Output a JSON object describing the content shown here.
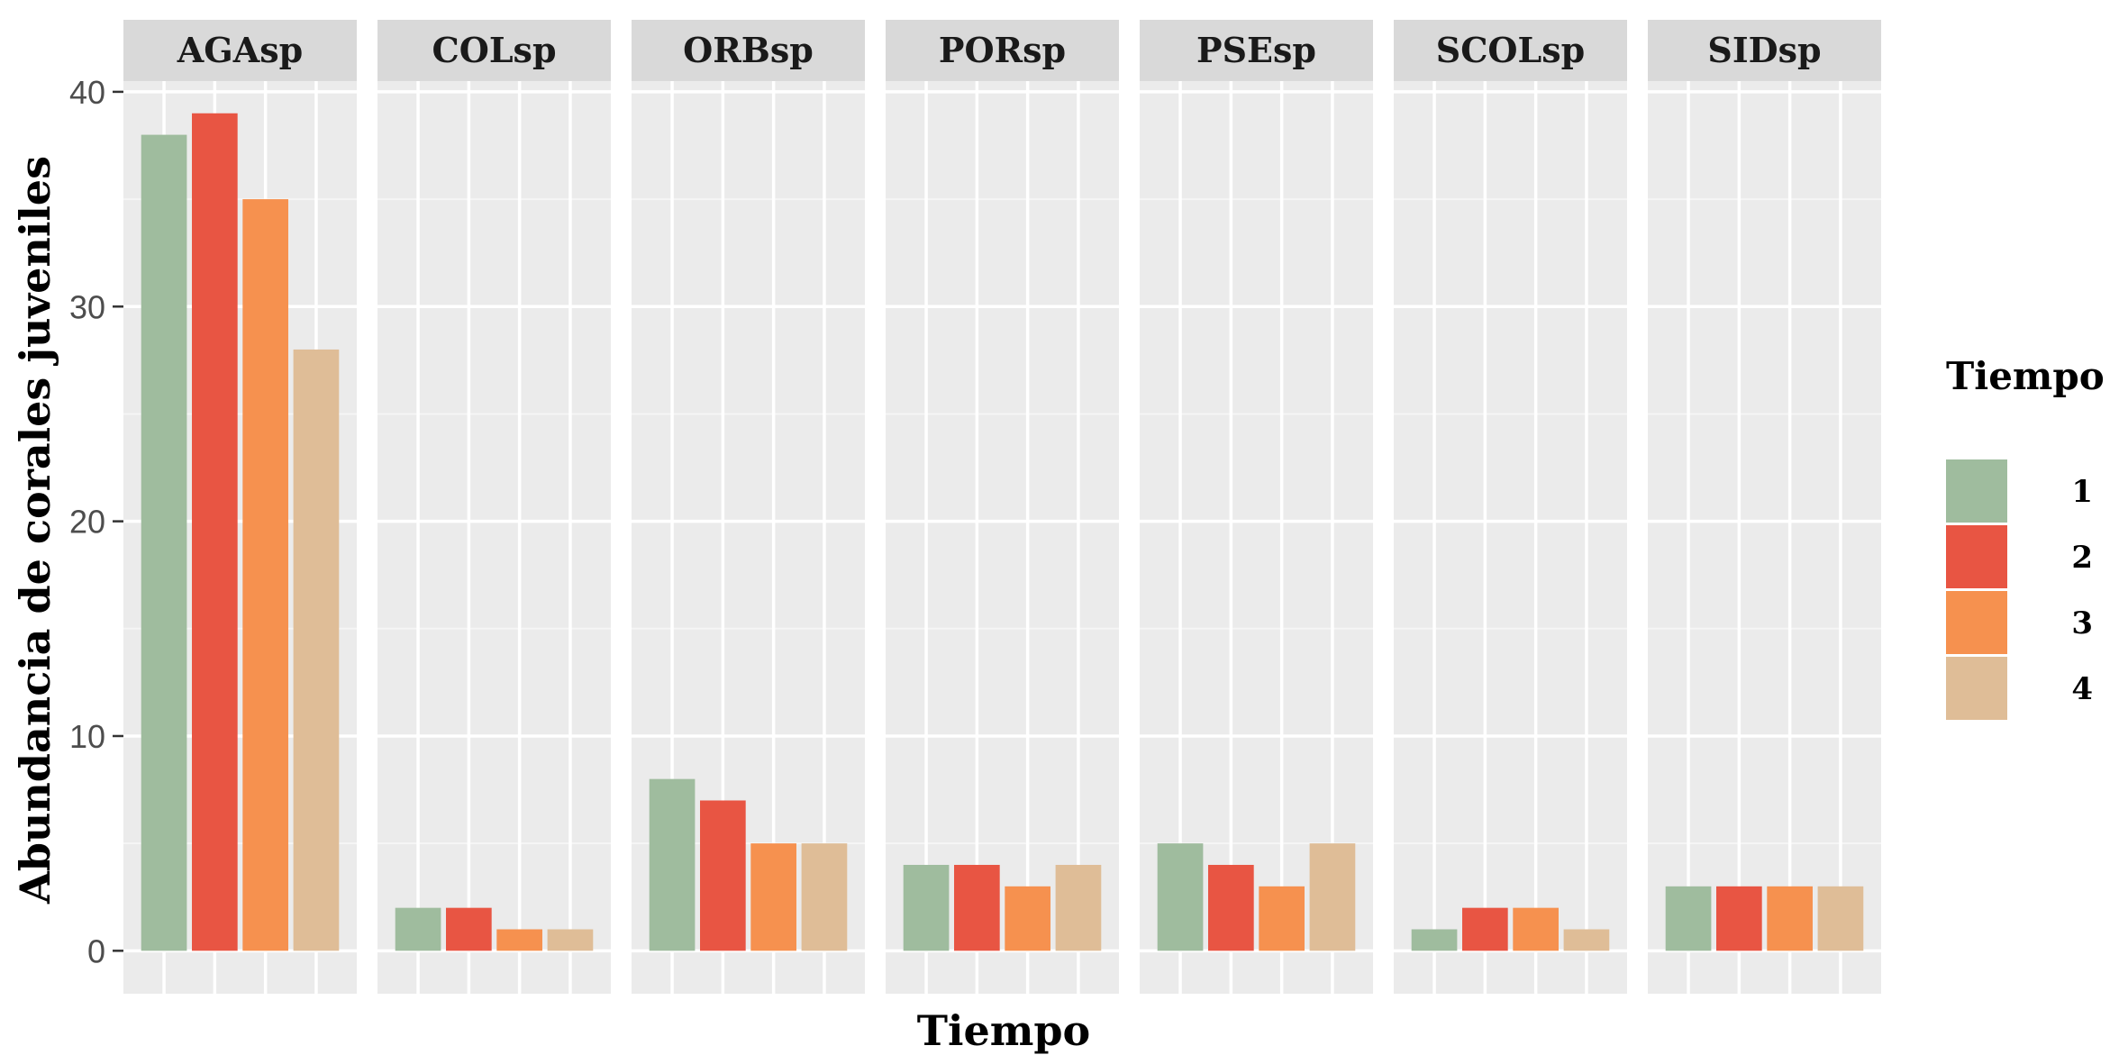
{
  "chart_data": {
    "type": "bar",
    "layout": "facet",
    "xlabel": "Tiempo",
    "ylabel": "Abundancia de corales juveniles",
    "ylim": [
      -2,
      40.5
    ],
    "yticks": [
      0,
      10,
      20,
      30,
      40
    ],
    "ytick_labels": [
      "0",
      "10",
      "20",
      "30",
      "40"
    ],
    "grid": true,
    "legend": {
      "title": "Tiempo",
      "placement": "right",
      "entries": [
        {
          "label": "1",
          "color": "#9fbc9e"
        },
        {
          "label": "2",
          "color": "#e85543"
        },
        {
          "label": "3",
          "color": "#f6914f"
        },
        {
          "label": "4",
          "color": "#dfbd97"
        }
      ]
    },
    "categories": [
      "1",
      "2",
      "3",
      "4"
    ],
    "facets": [
      {
        "name": "AGAsp",
        "values": [
          38,
          39,
          35,
          28
        ]
      },
      {
        "name": "COLsp",
        "values": [
          2,
          2,
          1,
          1
        ]
      },
      {
        "name": "ORBsp",
        "values": [
          8,
          7,
          5,
          5
        ]
      },
      {
        "name": "PORsp",
        "values": [
          4,
          4,
          3,
          4
        ]
      },
      {
        "name": "PSEsp",
        "values": [
          5,
          4,
          3,
          5
        ]
      },
      {
        "name": "SCOLsp",
        "values": [
          1,
          2,
          2,
          1
        ]
      },
      {
        "name": "SIDsp",
        "values": [
          3,
          3,
          3,
          3
        ]
      }
    ]
  }
}
